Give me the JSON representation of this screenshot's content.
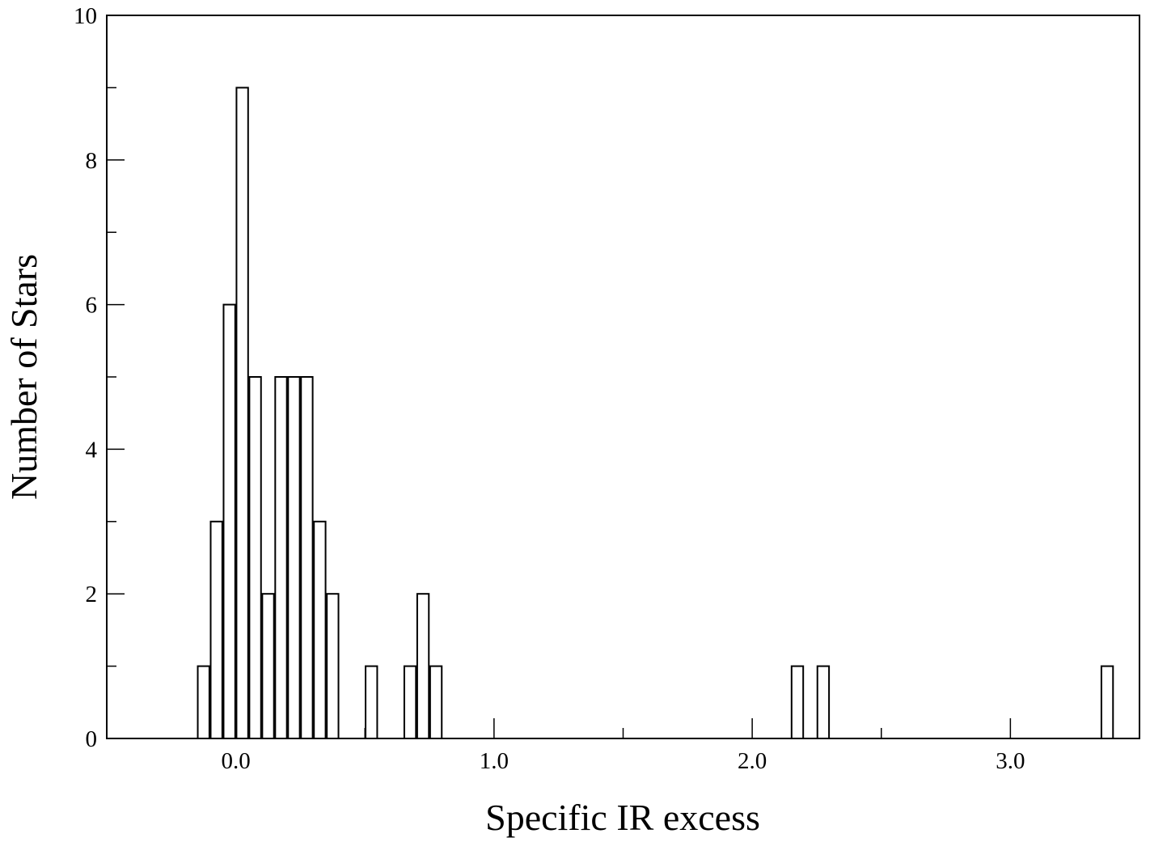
{
  "chart_data": {
    "type": "bar",
    "title": "",
    "xlabel": "Specific IR excess",
    "ylabel": "Number of Stars",
    "xlim": [
      -0.5,
      3.5
    ],
    "ylim": [
      0,
      10
    ],
    "bin_width": 0.05,
    "x_major_ticks": [
      0.0,
      1.0,
      2.0,
      3.0
    ],
    "x_major_tick_labels": [
      "0.0",
      "1.0",
      "2.0",
      "3.0"
    ],
    "x_minor_ticks": [
      0.5,
      1.5,
      2.5
    ],
    "y_major_ticks": [
      0,
      2,
      4,
      6,
      8,
      10
    ],
    "y_major_tick_labels": [
      "0",
      "2",
      "4",
      "6",
      "8",
      "10"
    ],
    "y_minor_ticks": [
      1,
      3,
      5,
      7,
      9
    ],
    "grid": false,
    "series": [
      {
        "x": [
          -0.125,
          -0.075,
          -0.025,
          0.025,
          0.075,
          0.125,
          0.175,
          0.225,
          0.275,
          0.325,
          0.375,
          0.525,
          0.675,
          0.725,
          0.775,
          2.175,
          2.275,
          3.375
        ],
        "values": [
          1,
          3,
          6,
          9,
          5,
          2,
          5,
          5,
          5,
          3,
          2,
          1,
          1,
          2,
          1,
          1,
          1,
          1
        ]
      }
    ]
  }
}
